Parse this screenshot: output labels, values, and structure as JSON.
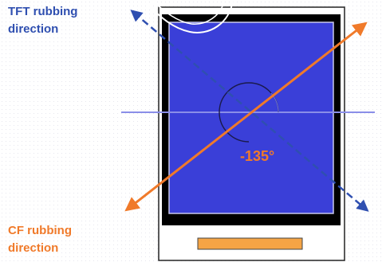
{
  "labels": {
    "tft_line1": "TFT rubbing",
    "tft_line2": "direction",
    "cf_line1": "CF rubbing",
    "cf_line2": "direction",
    "angle": "-135°"
  },
  "colors": {
    "tft_blue": "#2f4fb0",
    "cf_orange": "#f07a2a",
    "panel_blue": "#3a3fd8",
    "frame_black": "#000000",
    "horizontal_line": "#8a8ee8",
    "connector_orange": "#f5a445"
  }
}
